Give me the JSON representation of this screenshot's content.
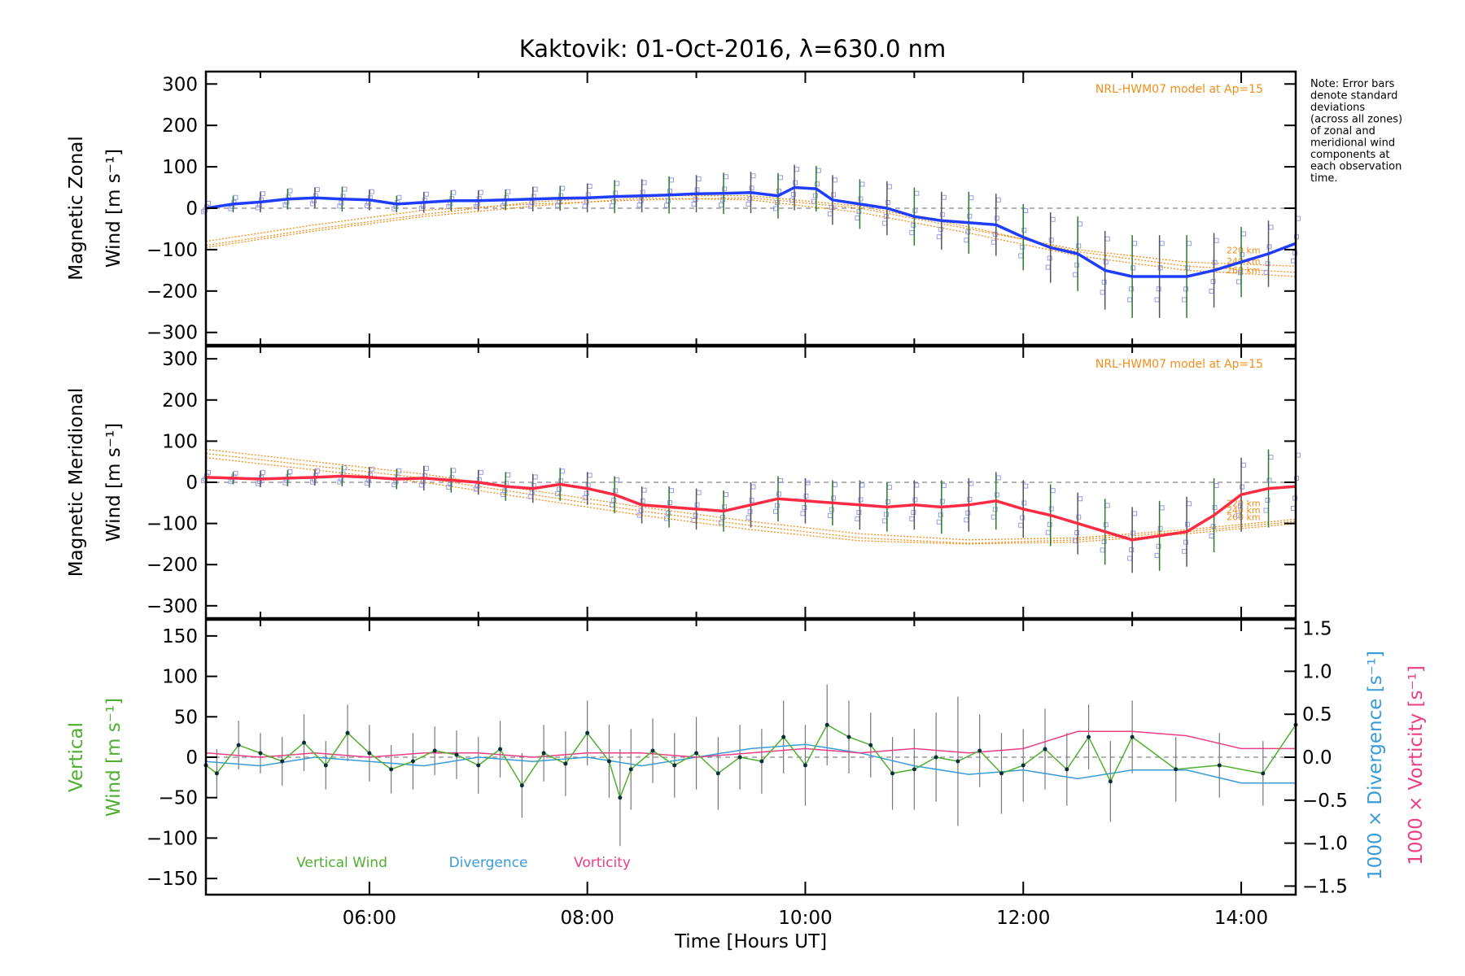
{
  "title": "Kaktovik: 01-Oct-2016, λ=630.0 nm",
  "note": [
    "Note: Error bars",
    "denote standard",
    "deviations",
    "(across all zones)",
    "of zonal and",
    "meridional wind",
    "components at",
    "each observation",
    "time."
  ],
  "colors": {
    "zonal": "#1f3cff",
    "meridional": "#ff2a44",
    "model": "#f28e1c",
    "vertical": "#4fb030",
    "divergence": "#3a9bd9",
    "vorticity": "#ea3f86",
    "scatter": "#9a9ae6",
    "errorbar": "#555555",
    "errorbar_alt": "#2a7a2a"
  },
  "chart_data": [
    {
      "type": "line",
      "panel": "zonal",
      "ylabel_line1": "Magnetic Zonal",
      "ylabel_line2": "Wind [m s⁻¹]",
      "ylim": [
        -330,
        330
      ],
      "yticks": [
        -300,
        -200,
        -100,
        0,
        100,
        200,
        300
      ],
      "xlim": [
        4.5,
        14.5
      ],
      "annotation": "NRL-HWM07 model at Ap=15",
      "altitudes": [
        "220 km",
        "240 km",
        "260 km"
      ],
      "series": [
        {
          "x": [
            4.5,
            4.75,
            5.0,
            5.25,
            5.5,
            5.75,
            6.0,
            6.25,
            6.5,
            6.75,
            7.0,
            7.25,
            7.5,
            7.75,
            8.0,
            8.25,
            8.5,
            8.75,
            9.0,
            9.25,
            9.5,
            9.75,
            9.9,
            10.1,
            10.25,
            10.5,
            10.75,
            11.0,
            11.25,
            11.5,
            11.75,
            12.0,
            12.25,
            12.5,
            12.75,
            13.0,
            13.25,
            13.5,
            13.75,
            14.0,
            14.25,
            14.5
          ],
          "y": [
            0,
            10,
            15,
            22,
            25,
            22,
            20,
            10,
            14,
            18,
            18,
            20,
            22,
            24,
            25,
            28,
            30,
            32,
            35,
            36,
            38,
            30,
            50,
            47,
            20,
            10,
            0,
            -20,
            -30,
            -35,
            -40,
            -70,
            -95,
            -110,
            -150,
            -165,
            -165,
            -165,
            -150,
            -130,
            -110,
            -85
          ],
          "sd": [
            15,
            20,
            25,
            25,
            25,
            30,
            25,
            20,
            25,
            25,
            25,
            25,
            30,
            30,
            35,
            40,
            40,
            45,
            45,
            50,
            50,
            55,
            55,
            55,
            60,
            60,
            65,
            70,
            70,
            75,
            75,
            80,
            85,
            90,
            95,
            100,
            100,
            100,
            90,
            85,
            80,
            75
          ]
        }
      ],
      "model": {
        "x": [
          4.5,
          5.5,
          6.5,
          7.5,
          8.5,
          9.5,
          10.5,
          11.5,
          12.5,
          13.5,
          14.5
        ],
        "lines": [
          [
            -80,
            -40,
            -5,
            10,
            20,
            25,
            0,
            -50,
            -100,
            -130,
            -140
          ],
          [
            -90,
            -50,
            -15,
            15,
            30,
            30,
            5,
            -45,
            -105,
            -140,
            -155
          ],
          [
            -95,
            -55,
            -20,
            5,
            25,
            20,
            -10,
            -60,
            -115,
            -150,
            -165
          ]
        ]
      }
    },
    {
      "type": "line",
      "panel": "meridional",
      "ylabel_line1": "Magnetic Meridional",
      "ylabel_line2": "Wind [m s⁻¹]",
      "ylim": [
        -330,
        330
      ],
      "yticks": [
        -300,
        -200,
        -100,
        0,
        100,
        200,
        300
      ],
      "xlim": [
        4.5,
        14.5
      ],
      "annotation": "NRL-HWM07 model at Ap=15",
      "altitudes": [
        "220 km",
        "240 km",
        "260 km"
      ],
      "series": [
        {
          "x": [
            4.5,
            4.75,
            5.0,
            5.25,
            5.5,
            5.75,
            6.0,
            6.25,
            6.5,
            6.75,
            7.0,
            7.25,
            7.5,
            7.75,
            8.0,
            8.25,
            8.5,
            8.75,
            9.0,
            9.25,
            9.5,
            9.75,
            10.0,
            10.25,
            10.5,
            10.75,
            11.0,
            11.25,
            11.5,
            11.75,
            12.0,
            12.25,
            12.5,
            12.75,
            13.0,
            13.25,
            13.5,
            13.75,
            14.0,
            14.25,
            14.5
          ],
          "y": [
            12,
            10,
            8,
            10,
            12,
            15,
            12,
            8,
            10,
            5,
            0,
            -10,
            -15,
            -5,
            -15,
            -30,
            -55,
            -60,
            -65,
            -70,
            -55,
            -40,
            -45,
            -50,
            -55,
            -60,
            -55,
            -60,
            -55,
            -45,
            -65,
            -80,
            -100,
            -120,
            -140,
            -130,
            -120,
            -80,
            -30,
            -15,
            -10
          ],
          "sd": [
            15,
            15,
            20,
            20,
            20,
            25,
            25,
            25,
            30,
            30,
            30,
            35,
            35,
            40,
            40,
            45,
            45,
            50,
            50,
            50,
            55,
            55,
            55,
            55,
            60,
            60,
            60,
            65,
            65,
            70,
            70,
            75,
            75,
            80,
            80,
            85,
            85,
            90,
            90,
            95,
            95
          ]
        }
      ],
      "model": {
        "x": [
          4.5,
          5.5,
          6.5,
          7.5,
          8.5,
          9.5,
          10.5,
          11.5,
          12.5,
          13.5,
          14.5
        ],
        "lines": [
          [
            80,
            50,
            20,
            -20,
            -60,
            -95,
            -125,
            -140,
            -135,
            -115,
            -90
          ],
          [
            70,
            40,
            10,
            -30,
            -70,
            -105,
            -135,
            -148,
            -140,
            -120,
            -95
          ],
          [
            60,
            30,
            0,
            -40,
            -80,
            -115,
            -142,
            -150,
            -145,
            -125,
            -100
          ]
        ]
      }
    },
    {
      "type": "line",
      "panel": "vertical",
      "ylabel_line1": "Vertical",
      "ylabel_line2": "Wind [m s⁻¹]",
      "ylim": [
        -170,
        170
      ],
      "yticks": [
        -150,
        -100,
        -50,
        0,
        50,
        100,
        150
      ],
      "y2lim": [
        -1.6,
        1.6
      ],
      "y2ticks": [
        -1.5,
        -1.0,
        -0.5,
        0.0,
        0.5,
        1.0,
        1.5
      ],
      "y2ticklabels": [
        "−1.5",
        "−1.0",
        "−0.5",
        "0.0",
        "0.5",
        "1.0",
        "1.5"
      ],
      "y2label": "1000 × Divergence [s⁻¹]",
      "y3label": "1000 × Vorticity [s⁻¹]",
      "xlim": [
        4.5,
        14.5
      ],
      "xticks": [
        6,
        8,
        10,
        12,
        14
      ],
      "xticklabels": [
        "06:00",
        "08:00",
        "10:00",
        "12:00",
        "14:00"
      ],
      "xlabel": "Time [Hours UT]",
      "legend": [
        "Vertical Wind",
        "Divergence",
        "Vorticity"
      ],
      "series": [
        {
          "name": "Vertical Wind",
          "x": [
            4.5,
            4.6,
            4.8,
            5.0,
            5.2,
            5.4,
            5.6,
            5.8,
            6.0,
            6.2,
            6.4,
            6.6,
            6.8,
            7.0,
            7.2,
            7.4,
            7.6,
            7.8,
            8.0,
            8.2,
            8.3,
            8.4,
            8.6,
            8.8,
            9.0,
            9.2,
            9.4,
            9.6,
            9.8,
            10.0,
            10.2,
            10.4,
            10.6,
            10.8,
            11.0,
            11.2,
            11.4,
            11.6,
            11.8,
            12.0,
            12.2,
            12.4,
            12.6,
            12.8,
            13.0,
            13.4,
            13.8,
            14.2,
            14.5
          ],
          "y": [
            -10,
            -20,
            15,
            5,
            -5,
            18,
            -10,
            30,
            5,
            -15,
            -5,
            8,
            3,
            -10,
            10,
            -35,
            5,
            -8,
            30,
            -5,
            -50,
            -15,
            8,
            -10,
            5,
            -20,
            0,
            -5,
            25,
            -10,
            40,
            25,
            15,
            -20,
            -15,
            0,
            -5,
            8,
            -20,
            -10,
            10,
            -15,
            25,
            -30,
            25,
            -15,
            -10,
            -20,
            40
          ],
          "err": [
            25,
            30,
            30,
            25,
            30,
            35,
            30,
            35,
            35,
            30,
            35,
            30,
            30,
            35,
            35,
            40,
            35,
            40,
            40,
            45,
            60,
            50,
            40,
            40,
            45,
            45,
            40,
            40,
            45,
            50,
            50,
            45,
            40,
            45,
            50,
            55,
            80,
            45,
            50,
            45,
            50,
            45,
            40,
            50,
            45,
            40,
            40,
            40,
            35
          ]
        },
        {
          "name": "Divergence",
          "x": [
            4.5,
            5.0,
            5.5,
            6.0,
            6.5,
            7.0,
            7.5,
            8.0,
            8.5,
            9.0,
            9.5,
            10.0,
            10.5,
            11.0,
            11.5,
            12.0,
            12.5,
            13.0,
            13.5,
            14.0,
            14.5
          ],
          "y": [
            -0.05,
            -0.1,
            0.0,
            -0.05,
            -0.1,
            0.0,
            -0.05,
            0.0,
            -0.1,
            0.0,
            0.1,
            0.15,
            0.05,
            -0.1,
            -0.2,
            -0.15,
            -0.25,
            -0.15,
            -0.15,
            -0.3,
            -0.3
          ]
        },
        {
          "name": "Vorticity",
          "x": [
            4.5,
            5.0,
            5.5,
            6.0,
            6.5,
            7.0,
            7.5,
            8.0,
            8.5,
            9.0,
            9.5,
            10.0,
            10.5,
            11.0,
            11.5,
            12.0,
            12.5,
            12.75,
            13.0,
            13.5,
            14.0,
            14.5
          ],
          "y": [
            0.05,
            0.0,
            0.05,
            0.0,
            0.05,
            0.05,
            0.0,
            0.05,
            0.05,
            0.0,
            0.05,
            0.1,
            0.05,
            0.1,
            0.05,
            0.1,
            0.3,
            0.3,
            0.3,
            0.25,
            0.1,
            0.1
          ]
        }
      ]
    }
  ]
}
